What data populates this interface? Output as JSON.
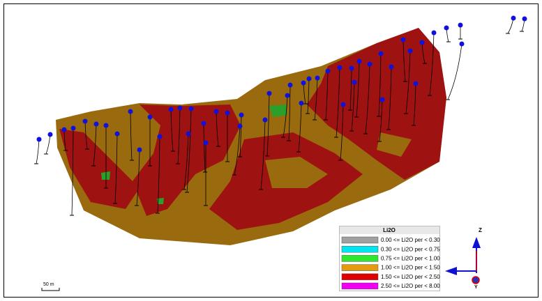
{
  "legend": {
    "title": "Li2O",
    "items": [
      {
        "label": "0.00 <= Li2O  per < 0.30",
        "color": "#a0a0a0"
      },
      {
        "label": "0.30 <= Li2O  per < 0.75",
        "color": "#00e5ee"
      },
      {
        "label": "0.75 <= Li2O  per < 1.00",
        "color": "#2ee82e"
      },
      {
        "label": "1.00 <= Li2O  per < 1.50",
        "color": "#e39c10"
      },
      {
        "label": "1.50 <= Li2O  per < 2.50",
        "color": "#e00000"
      },
      {
        "label": "2.50 <= Li2O  per < 8.00",
        "color": "#f000f0"
      }
    ]
  },
  "scale_bar": "50 m",
  "axes": {
    "z": "Z",
    "y": "Y"
  }
}
